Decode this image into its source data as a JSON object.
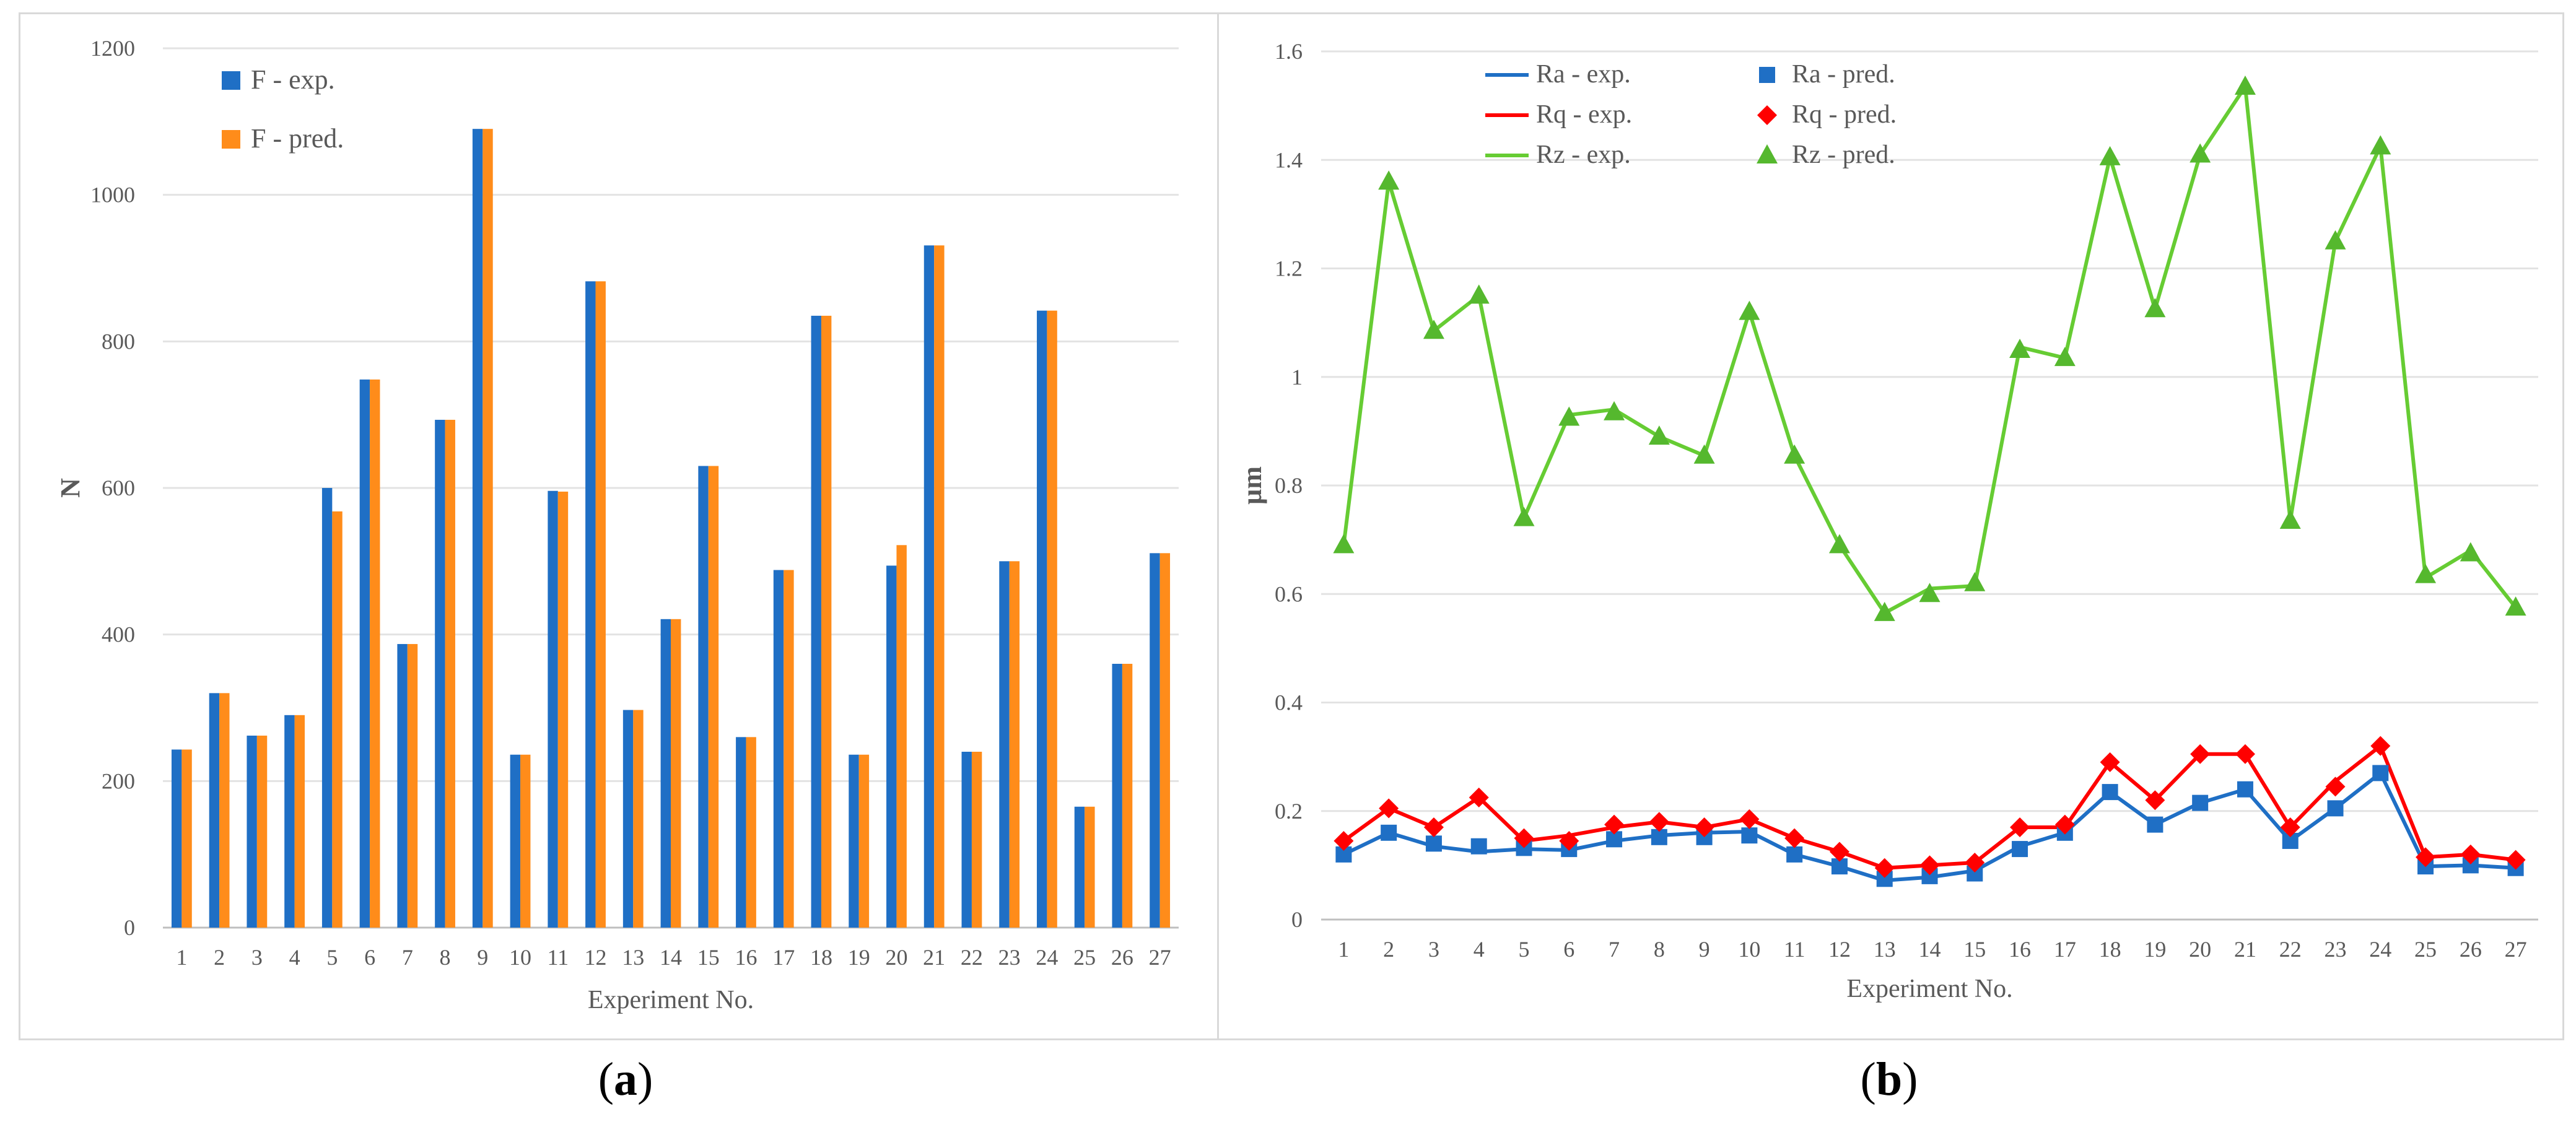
{
  "captions": {
    "a": "a",
    "b": "b"
  },
  "chart_data": [
    {
      "type": "bar",
      "panel": "a",
      "title": "",
      "xlabel": "Experiment No.",
      "ylabel": "N",
      "ylim": [
        0,
        1200
      ],
      "yticks": [
        0,
        200,
        400,
        600,
        800,
        1000,
        1200
      ],
      "grid": true,
      "legend_position": "top-left",
      "categories": [
        "1",
        "2",
        "3",
        "4",
        "5",
        "6",
        "7",
        "8",
        "9",
        "10",
        "11",
        "12",
        "13",
        "14",
        "15",
        "16",
        "17",
        "18",
        "19",
        "20",
        "21",
        "22",
        "23",
        "24",
        "25",
        "26",
        "27"
      ],
      "series": [
        {
          "name": "F - exp.",
          "color": "#1f6fc5",
          "values": [
            243,
            320,
            262,
            290,
            600,
            748,
            387,
            693,
            1090,
            236,
            596,
            882,
            297,
            421,
            630,
            260,
            488,
            835,
            236,
            494,
            931,
            240,
            500,
            842,
            165,
            360,
            511
          ]
        },
        {
          "name": "F - pred.",
          "color": "#ff8c1a",
          "values": [
            243,
            320,
            262,
            290,
            568,
            748,
            387,
            693,
            1090,
            236,
            595,
            882,
            297,
            421,
            630,
            260,
            488,
            835,
            236,
            522,
            931,
            240,
            500,
            842,
            165,
            360,
            511
          ]
        }
      ]
    },
    {
      "type": "line",
      "panel": "b",
      "title": "",
      "xlabel": "Experiment No.",
      "ylabel": "µm",
      "ylim": [
        0,
        1.6
      ],
      "yticks": [
        "0",
        "0.2",
        "0.4",
        "0.6",
        "0.8",
        "1",
        "1.2",
        "1.4",
        "1.6"
      ],
      "grid": true,
      "legend_position": "top-left",
      "x": [
        "1",
        "2",
        "3",
        "4",
        "5",
        "6",
        "7",
        "8",
        "9",
        "10",
        "11",
        "12",
        "13",
        "14",
        "15",
        "16",
        "17",
        "18",
        "19",
        "20",
        "21",
        "22",
        "23",
        "24",
        "25",
        "26",
        "27"
      ],
      "series": [
        {
          "name": "Ra - exp.",
          "style": "line",
          "color": "#1f6fc5",
          "values": [
            0.12,
            0.16,
            0.135,
            0.125,
            0.13,
            0.128,
            0.145,
            0.155,
            0.16,
            0.162,
            0.12,
            0.098,
            0.072,
            0.078,
            0.09,
            0.135,
            0.16,
            0.235,
            0.175,
            0.215,
            0.24,
            0.145,
            0.205,
            0.27,
            0.098,
            0.1,
            0.095
          ]
        },
        {
          "name": "Ra - pred.",
          "style": "marker-square",
          "color": "#1f6fc5",
          "values": [
            0.12,
            0.16,
            0.14,
            0.135,
            0.132,
            0.13,
            0.148,
            0.152,
            0.152,
            0.155,
            0.12,
            0.098,
            0.075,
            0.08,
            0.085,
            0.13,
            0.16,
            0.235,
            0.175,
            0.215,
            0.24,
            0.145,
            0.205,
            0.27,
            0.098,
            0.1,
            0.095
          ]
        },
        {
          "name": "Rq - exp.",
          "style": "line",
          "color": "#ff0000",
          "values": [
            0.145,
            0.205,
            0.17,
            0.225,
            0.145,
            0.155,
            0.17,
            0.18,
            0.17,
            0.185,
            0.15,
            0.125,
            0.095,
            0.1,
            0.105,
            0.17,
            0.17,
            0.29,
            0.22,
            0.305,
            0.305,
            0.17,
            0.255,
            0.32,
            0.115,
            0.12,
            0.11
          ]
        },
        {
          "name": "Rq - pred.",
          "style": "marker-diamond",
          "color": "#ff0000",
          "values": [
            0.145,
            0.205,
            0.17,
            0.225,
            0.15,
            0.145,
            0.175,
            0.18,
            0.17,
            0.185,
            0.15,
            0.125,
            0.095,
            0.1,
            0.105,
            0.17,
            0.175,
            0.29,
            0.22,
            0.305,
            0.305,
            0.17,
            0.245,
            0.32,
            0.115,
            0.12,
            0.11
          ]
        },
        {
          "name": "Rz - exp.",
          "style": "line",
          "color": "#66cc33",
          "values": [
            0.69,
            1.36,
            1.085,
            1.15,
            0.74,
            0.93,
            0.94,
            0.89,
            0.855,
            1.12,
            0.855,
            0.69,
            0.565,
            0.61,
            0.615,
            1.055,
            1.035,
            1.405,
            1.125,
            1.41,
            1.535,
            0.735,
            1.25,
            1.425,
            0.63,
            0.68,
            0.575
          ]
        },
        {
          "name": "Rz - pred.",
          "style": "marker-triangle",
          "color": "#55b82e",
          "values": [
            0.69,
            1.36,
            1.085,
            1.15,
            0.74,
            0.925,
            0.935,
            0.89,
            0.855,
            1.12,
            0.855,
            0.69,
            0.565,
            0.6,
            0.62,
            1.05,
            1.035,
            1.405,
            1.125,
            1.41,
            1.535,
            0.735,
            1.25,
            1.425,
            0.635,
            0.675,
            0.575
          ]
        }
      ]
    }
  ]
}
